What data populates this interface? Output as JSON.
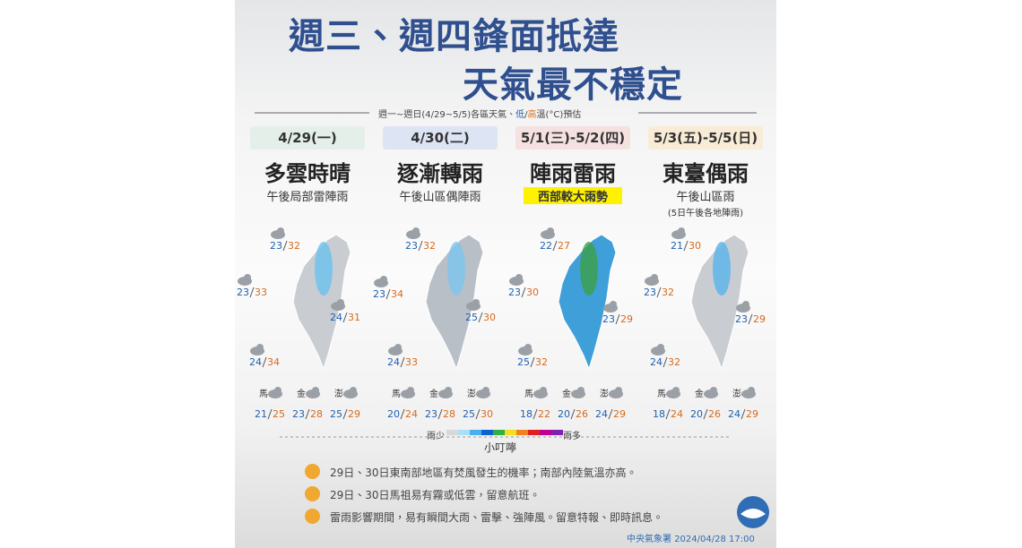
{
  "header": {
    "title_line1": "週三、週四鋒面抵達",
    "title_line2": "天氣最不穩定",
    "subtitle": [
      "週一~週日(4/29~5/5)各區天氣、",
      "低",
      "/",
      "高",
      "溫(°C)預估"
    ]
  },
  "columns": [
    {
      "date": "4/29(一)",
      "weather": "多雲時晴",
      "note": "午後局部雷陣雨",
      "temps": [
        {
          "low": 23,
          "high": 32
        },
        {
          "low": 23,
          "high": 33
        },
        {
          "low": 24,
          "high": 31
        },
        {
          "low": 24,
          "high": 34
        }
      ],
      "islands": [
        {
          "name": "馬",
          "low": 21,
          "high": 25
        },
        {
          "name": "金",
          "low": 23,
          "high": 28
        },
        {
          "name": "澎",
          "low": 25,
          "high": 29
        }
      ]
    },
    {
      "date": "4/30(二)",
      "weather": "逐漸轉雨",
      "note": "午後山區偶陣雨",
      "temps": [
        {
          "low": 23,
          "high": 32
        },
        {
          "low": 23,
          "high": 34
        },
        {
          "low": 25,
          "high": 30
        },
        {
          "low": 24,
          "high": 33
        }
      ],
      "islands": [
        {
          "name": "馬",
          "low": 20,
          "high": 24
        },
        {
          "name": "金",
          "low": 23,
          "high": 28
        },
        {
          "name": "澎",
          "low": 25,
          "high": 30
        }
      ]
    },
    {
      "date": "5/1(三)-5/2(四)",
      "weather": "陣雨雷雨",
      "note": "西部較大雨勢",
      "temps": [
        {
          "low": 22,
          "high": 27
        },
        {
          "low": 23,
          "high": 30
        },
        {
          "low": 23,
          "high": 29
        },
        {
          "low": 25,
          "high": 32
        }
      ],
      "islands": [
        {
          "name": "馬",
          "low": 18,
          "high": 22
        },
        {
          "name": "金",
          "low": 20,
          "high": 26
        },
        {
          "name": "澎",
          "low": 24,
          "high": 29
        }
      ]
    },
    {
      "date": "5/3(五)-5/5(日)",
      "weather": "東臺偶雨",
      "note": "午後山區雨",
      "note2": "(5日午後各地陣雨)",
      "temps": [
        {
          "low": 21,
          "high": 30
        },
        {
          "low": 23,
          "high": 32
        },
        {
          "low": 23,
          "high": 29
        },
        {
          "low": 24,
          "high": 32
        }
      ],
      "islands": [
        {
          "name": "馬",
          "low": 18,
          "high": 24
        },
        {
          "name": "金",
          "low": 20,
          "high": 26
        },
        {
          "name": "澎",
          "low": 24,
          "high": 29
        }
      ]
    }
  ],
  "legend": {
    "low": "雨少",
    "high": "雨多"
  },
  "reminder": {
    "title": "小叮嚀",
    "tips": [
      "29日、30日東南部地區有焚風發生的機率；南部內陸氣溫亦高。",
      "29日、30日馬祖易有霧或低雲，留意航班。",
      "雷雨影響期間，易有瞬間大雨、雷擊、強陣風。留意特報、即時訊息。"
    ]
  },
  "footer": {
    "agency": "中央氣象署",
    "time": "2024/04/28 17:00"
  }
}
